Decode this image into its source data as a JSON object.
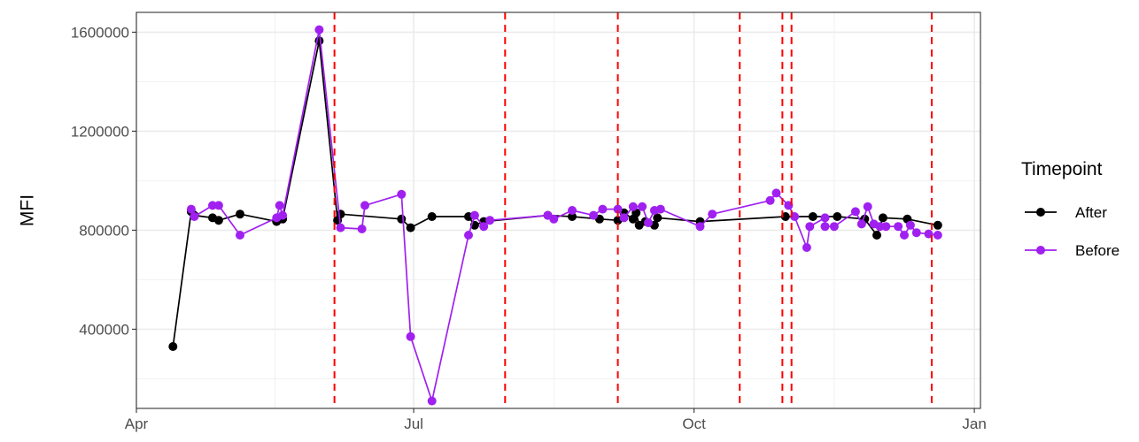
{
  "chart_data": {
    "type": "line",
    "title": "",
    "xlabel": "",
    "ylabel": "MFI",
    "x_ticks": [
      {
        "date": "2021-04-01",
        "label": "Apr"
      },
      {
        "date": "2021-07-01",
        "label": "Jul"
      },
      {
        "date": "2021-10-01",
        "label": "Oct"
      },
      {
        "date": "2022-01-01",
        "label": "Jan"
      }
    ],
    "xlim": [
      "2021-04-01",
      "2022-01-03"
    ],
    "y_ticks": [
      400000,
      800000,
      1200000,
      1600000
    ],
    "ylim": [
      80000,
      1680000
    ],
    "grid": true,
    "legend": {
      "title": "Timepoint",
      "position": "right"
    },
    "vlines": {
      "color": "#FF0000",
      "style": "dashed",
      "x": [
        "2021-06-05",
        "2021-07-31",
        "2021-09-06",
        "2021-10-16",
        "2021-10-30",
        "2021-11-02",
        "2021-12-18"
      ]
    },
    "series": [
      {
        "name": "After",
        "color": "#000000",
        "points": [
          [
            "2021-04-13",
            330000
          ],
          [
            "2021-04-19",
            875000
          ],
          [
            "2021-04-20",
            860000
          ],
          [
            "2021-04-26",
            850000
          ],
          [
            "2021-04-28",
            840000
          ],
          [
            "2021-05-05",
            865000
          ],
          [
            "2021-05-17",
            835000
          ],
          [
            "2021-05-19",
            845000
          ],
          [
            "2021-05-31",
            1565000
          ],
          [
            "2021-06-06",
            840000
          ],
          [
            "2021-06-07",
            865000
          ],
          [
            "2021-06-27",
            845000
          ],
          [
            "2021-06-30",
            810000
          ],
          [
            "2021-07-07",
            855000
          ],
          [
            "2021-07-19",
            855000
          ],
          [
            "2021-07-21",
            820000
          ],
          [
            "2021-07-24",
            835000
          ],
          [
            "2021-08-14",
            860000
          ],
          [
            "2021-08-22",
            855000
          ],
          [
            "2021-08-31",
            845000
          ],
          [
            "2021-09-06",
            840000
          ],
          [
            "2021-09-08",
            870000
          ],
          [
            "2021-09-11",
            845000
          ],
          [
            "2021-09-12",
            870000
          ],
          [
            "2021-09-13",
            820000
          ],
          [
            "2021-09-15",
            835000
          ],
          [
            "2021-09-18",
            820000
          ],
          [
            "2021-09-19",
            850000
          ],
          [
            "2021-10-03",
            835000
          ],
          [
            "2021-10-31",
            855000
          ],
          [
            "2021-11-09",
            855000
          ],
          [
            "2021-11-17",
            855000
          ],
          [
            "2021-11-26",
            845000
          ],
          [
            "2021-11-30",
            780000
          ],
          [
            "2021-12-02",
            850000
          ],
          [
            "2021-12-10",
            845000
          ],
          [
            "2021-12-20",
            820000
          ]
        ]
      },
      {
        "name": "Before",
        "color": "#A020F0",
        "points": [
          [
            "2021-04-19",
            885000
          ],
          [
            "2021-04-20",
            855000
          ],
          [
            "2021-04-26",
            900000
          ],
          [
            "2021-04-28",
            900000
          ],
          [
            "2021-05-05",
            780000
          ],
          [
            "2021-05-17",
            850000
          ],
          [
            "2021-05-18",
            900000
          ],
          [
            "2021-05-19",
            860000
          ],
          [
            "2021-05-31",
            1610000
          ],
          [
            "2021-06-07",
            810000
          ],
          [
            "2021-06-14",
            805000
          ],
          [
            "2021-06-15",
            900000
          ],
          [
            "2021-06-27",
            945000
          ],
          [
            "2021-06-30",
            370000
          ],
          [
            "2021-07-07",
            110000
          ],
          [
            "2021-07-19",
            780000
          ],
          [
            "2021-07-21",
            860000
          ],
          [
            "2021-07-24",
            815000
          ],
          [
            "2021-07-26",
            840000
          ],
          [
            "2021-08-14",
            860000
          ],
          [
            "2021-08-16",
            845000
          ],
          [
            "2021-08-22",
            880000
          ],
          [
            "2021-08-29",
            860000
          ],
          [
            "2021-09-01",
            885000
          ],
          [
            "2021-09-06",
            885000
          ],
          [
            "2021-09-08",
            850000
          ],
          [
            "2021-09-11",
            895000
          ],
          [
            "2021-09-14",
            895000
          ],
          [
            "2021-09-16",
            830000
          ],
          [
            "2021-09-18",
            880000
          ],
          [
            "2021-09-20",
            885000
          ],
          [
            "2021-10-03",
            815000
          ],
          [
            "2021-10-07",
            865000
          ],
          [
            "2021-10-26",
            920000
          ],
          [
            "2021-10-28",
            950000
          ],
          [
            "2021-11-01",
            900000
          ],
          [
            "2021-11-03",
            855000
          ],
          [
            "2021-11-07",
            730000
          ],
          [
            "2021-11-08",
            815000
          ],
          [
            "2021-11-13",
            850000
          ],
          [
            "2021-11-13",
            815000
          ],
          [
            "2021-11-16",
            815000
          ],
          [
            "2021-11-23",
            875000
          ],
          [
            "2021-11-25",
            825000
          ],
          [
            "2021-11-27",
            895000
          ],
          [
            "2021-11-29",
            825000
          ],
          [
            "2021-12-01",
            815000
          ],
          [
            "2021-12-03",
            815000
          ],
          [
            "2021-12-07",
            815000
          ],
          [
            "2021-12-09",
            780000
          ],
          [
            "2021-12-11",
            820000
          ],
          [
            "2021-12-13",
            790000
          ],
          [
            "2021-12-17",
            785000
          ],
          [
            "2021-12-20",
            780000
          ]
        ]
      }
    ]
  }
}
